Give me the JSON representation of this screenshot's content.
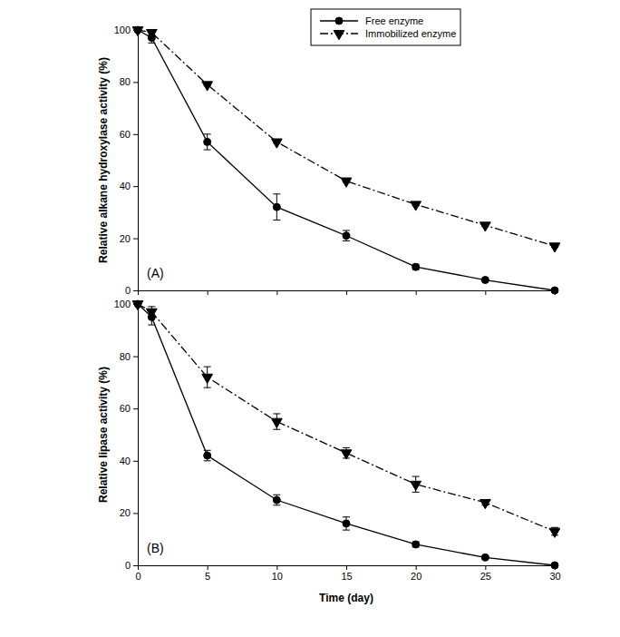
{
  "chart_data": [
    {
      "type": "line",
      "y_label": "Relative alkane hydroxylase activity (%)",
      "annotations": [
        "(A)"
      ],
      "x": [
        0,
        1,
        5,
        10,
        15,
        20,
        25,
        30
      ],
      "xlim": [
        0,
        30
      ],
      "xticks": [
        0,
        5,
        10,
        15,
        20,
        25,
        30
      ],
      "ylim": [
        0,
        100
      ],
      "yticks": [
        0,
        20,
        40,
        60,
        80,
        100
      ],
      "tick_labels": "y",
      "legend": "upper right",
      "series": [
        {
          "name": "Free enzyme",
          "color": "#000000",
          "marker": "circle",
          "line_style": "solid",
          "values": [
            100,
            97,
            57,
            32,
            21,
            9,
            4,
            0
          ],
          "errors": [
            0,
            2,
            3,
            5,
            2,
            1,
            0.5,
            0
          ]
        },
        {
          "name": "Immobilized enzyme",
          "color": "#000000",
          "marker": "triangle-down",
          "line_style": "dashdot",
          "values": [
            100,
            99,
            79,
            57,
            42,
            33,
            25,
            17
          ],
          "errors": [
            0,
            1,
            0.5,
            0.5,
            0.5,
            0.5,
            0.5,
            0.5
          ]
        }
      ]
    },
    {
      "type": "line",
      "y_label": "Relative lipase activity (%)",
      "x_label": "Time (day)",
      "annotations": [
        "(B)"
      ],
      "x": [
        0,
        1,
        5,
        10,
        15,
        20,
        25,
        30
      ],
      "xlim": [
        0,
        30
      ],
      "xticks": [
        0,
        5,
        10,
        15,
        20,
        25,
        30
      ],
      "ylim": [
        0,
        100
      ],
      "yticks": [
        0,
        20,
        40,
        60,
        80,
        100
      ],
      "series": [
        {
          "color": "#000000",
          "marker": "circle",
          "line_style": "solid",
          "values": [
            100,
            95,
            42,
            25,
            16,
            8,
            3,
            0
          ],
          "errors": [
            0,
            3,
            2,
            2,
            2.5,
            1,
            0.5,
            0
          ]
        },
        {
          "color": "#000000",
          "marker": "triangle-down",
          "line_style": "dashdot",
          "values": [
            100,
            97,
            72,
            55,
            43,
            31,
            24,
            13
          ],
          "errors": [
            0,
            2,
            4,
            3,
            2,
            3,
            1,
            1.5
          ]
        }
      ]
    }
  ]
}
